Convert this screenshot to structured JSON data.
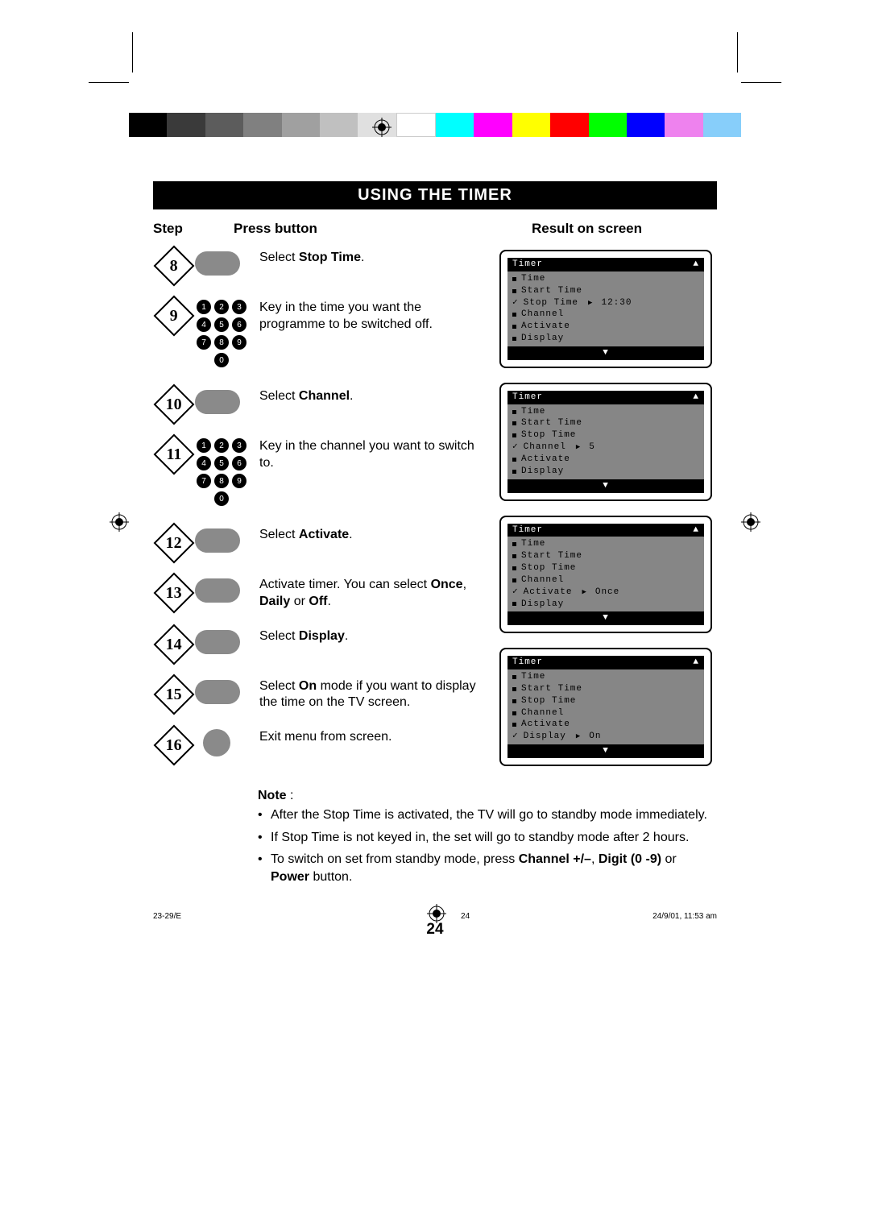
{
  "title": "USING THE TIMER",
  "headers": {
    "step": "Step",
    "press": "Press button",
    "result": "Result on screen"
  },
  "colorbar": [
    "#000000",
    "#3a3a3a",
    "#5c5c5c",
    "#808080",
    "#a0a0a0",
    "#c0c0c0",
    "#e0e0e0",
    "#ffffff",
    "#00ffff",
    "#ff00ff",
    "#ffff00",
    "#ff0000",
    "#00ff00",
    "#0000ff",
    "#ee82ee",
    "#87cefa"
  ],
  "steps": [
    {
      "n": "8",
      "button": "pill",
      "text_pre": "Select ",
      "text_bold": "Stop Time",
      "text_post": "."
    },
    {
      "n": "9",
      "button": "keypad",
      "text_pre": "Key in the time you want the programme to be switched off.",
      "text_bold": "",
      "text_post": ""
    },
    {
      "n": "10",
      "button": "pill",
      "text_pre": "Select ",
      "text_bold": "Channel",
      "text_post": "."
    },
    {
      "n": "11",
      "button": "keypad",
      "text_pre": "Key in the channel you want to switch to.",
      "text_bold": "",
      "text_post": ""
    },
    {
      "n": "12",
      "button": "pill",
      "text_pre": "Select ",
      "text_bold": "Activate",
      "text_post": "."
    },
    {
      "n": "13",
      "button": "pill",
      "text_pre": "Activate timer. You can select ",
      "text_bold": "Once",
      "text_post": ", ",
      "text_bold2": "Daily",
      "text_post2": " or ",
      "text_bold3": "Off",
      "text_post3": "."
    },
    {
      "n": "14",
      "button": "pill",
      "text_pre": "Select ",
      "text_bold": "Display",
      "text_post": "."
    },
    {
      "n": "15",
      "button": "pill",
      "text_pre": "Select ",
      "text_bold": "On",
      "text_post": " mode if you want to display the time on the TV screen."
    },
    {
      "n": "16",
      "button": "circle",
      "text_pre": "Exit menu from screen.",
      "text_bold": "",
      "text_post": ""
    }
  ],
  "osd_menus": [
    {
      "title": "Timer",
      "rows": [
        {
          "sel": false,
          "label": "Time"
        },
        {
          "sel": false,
          "label": "Start Time"
        },
        {
          "sel": true,
          "label": "Stop Time",
          "value": "12:30"
        },
        {
          "sel": false,
          "label": "Channel"
        },
        {
          "sel": false,
          "label": "Activate"
        },
        {
          "sel": false,
          "label": "Display"
        }
      ]
    },
    {
      "title": "Timer",
      "rows": [
        {
          "sel": false,
          "label": "Time"
        },
        {
          "sel": false,
          "label": "Start Time"
        },
        {
          "sel": false,
          "label": "Stop Time"
        },
        {
          "sel": true,
          "label": "Channel",
          "value": "5"
        },
        {
          "sel": false,
          "label": "Activate"
        },
        {
          "sel": false,
          "label": "Display"
        }
      ]
    },
    {
      "title": "Timer",
      "rows": [
        {
          "sel": false,
          "label": "Time"
        },
        {
          "sel": false,
          "label": "Start Time"
        },
        {
          "sel": false,
          "label": "Stop Time"
        },
        {
          "sel": false,
          "label": "Channel"
        },
        {
          "sel": true,
          "label": "Activate",
          "value": "Once"
        },
        {
          "sel": false,
          "label": "Display"
        }
      ]
    },
    {
      "title": "Timer",
      "rows": [
        {
          "sel": false,
          "label": "Time"
        },
        {
          "sel": false,
          "label": "Start Time"
        },
        {
          "sel": false,
          "label": "Stop Time"
        },
        {
          "sel": false,
          "label": "Channel"
        },
        {
          "sel": false,
          "label": "Activate"
        },
        {
          "sel": true,
          "label": "Display",
          "value": "On"
        }
      ]
    }
  ],
  "note": {
    "label": "Note",
    "items": [
      "After the Stop Time is activated, the TV will go to standby mode immediately.",
      "If Stop Time is not keyed in,  the set will go to standby mode after 2 hours.",
      "To switch on set from standby mode, press <b>Channel +/–</b>, <b>Digit (0 -9)</b> or <b>Power</b> button."
    ]
  },
  "page_num": "24",
  "footer": {
    "left": "23-29/E",
    "mid": "24",
    "right": "24/9/01, 11:53 am"
  }
}
